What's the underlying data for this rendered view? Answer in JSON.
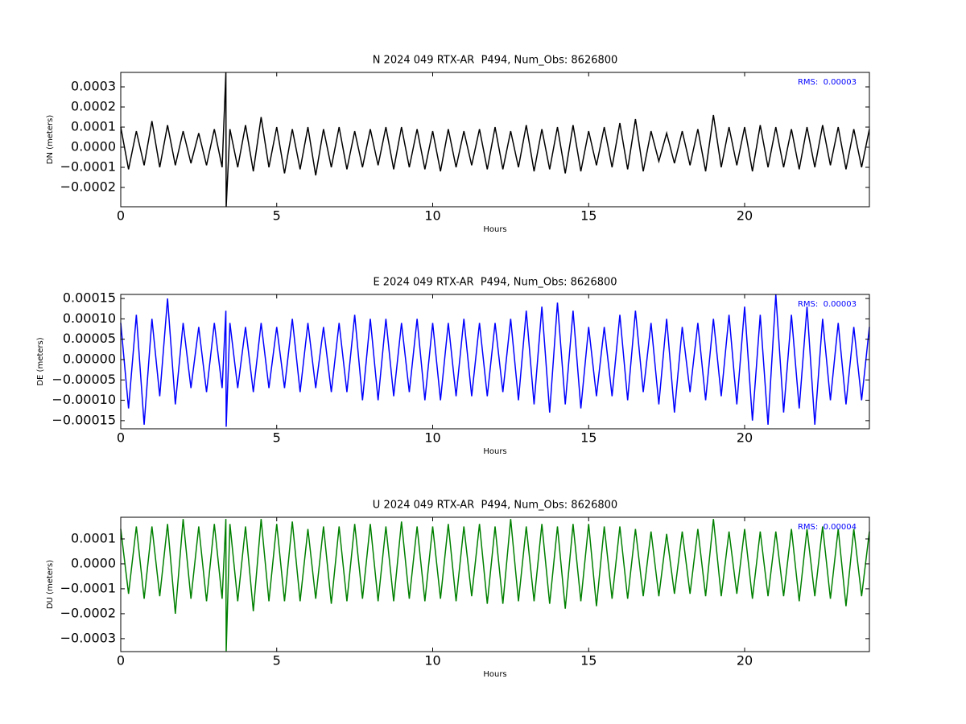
{
  "chart_data": [
    {
      "type": "line",
      "title": "N 2024 049 RTX-AR  P494, Num_Obs: 8626800",
      "xlabel": "Hours",
      "ylabel": "DN (meters)",
      "annotation": "RMS:  0.00003",
      "annotation_color": "#0000ff",
      "xlim": [
        0,
        24
      ],
      "xticks": [
        0,
        5,
        10,
        15,
        20
      ],
      "ylim": [
        -0.000296,
        0.000372
      ],
      "yticks": [
        {
          "value": -0.0002,
          "label": "−0.0002"
        },
        {
          "value": -0.0001,
          "label": "−0.0001"
        },
        {
          "value": 0,
          "label": "0.0000"
        },
        0.0001,
        0.0002,
        0.0003
      ],
      "x": [
        0,
        0.25,
        0.5,
        0.75,
        1,
        1.25,
        1.5,
        1.75,
        2,
        2.25,
        2.5,
        2.75,
        3,
        3.25,
        3.37,
        3.38,
        3.5,
        3.75,
        4,
        4.25,
        4.5,
        4.75,
        5,
        5.25,
        5.5,
        5.75,
        6,
        6.25,
        6.5,
        6.75,
        7,
        7.25,
        7.5,
        7.75,
        8,
        8.25,
        8.5,
        8.75,
        9,
        9.25,
        9.5,
        9.75,
        10,
        10.25,
        10.5,
        10.75,
        11,
        11.25,
        11.5,
        11.75,
        12,
        12.25,
        12.5,
        12.75,
        13,
        13.25,
        13.5,
        13.75,
        14,
        14.25,
        14.5,
        14.75,
        15,
        15.25,
        15.5,
        15.75,
        16,
        16.25,
        16.5,
        16.75,
        17,
        17.25,
        17.5,
        17.75,
        18,
        18.25,
        18.5,
        18.75,
        19,
        19.25,
        19.5,
        19.75,
        20,
        20.25,
        20.5,
        20.75,
        21,
        21.25,
        21.5,
        21.75,
        22,
        22.25,
        22.5,
        22.75,
        23,
        23.25,
        23.5,
        23.75,
        24
      ],
      "series": [
        {
          "color": "#000000",
          "values": [
            0.0001,
            -0.00011,
            8e-05,
            -9e-05,
            0.00013,
            -0.0001,
            0.00011,
            -9e-05,
            8e-05,
            -8e-05,
            7e-05,
            -9e-05,
            9e-05,
            -0.0001,
            0.00037,
            -0.000296,
            9e-05,
            -0.0001,
            0.00011,
            -0.00012,
            0.00015,
            -0.0001,
            0.0001,
            -0.00013,
            9e-05,
            -0.00011,
            0.0001,
            -0.00014,
            9e-05,
            -0.0001,
            0.0001,
            -0.00011,
            8e-05,
            -0.0001,
            9e-05,
            -9e-05,
            0.0001,
            -0.00011,
            0.0001,
            -0.0001,
            9e-05,
            -0.00011,
            8e-05,
            -0.00012,
            9e-05,
            -0.0001,
            8e-05,
            -9e-05,
            9e-05,
            -0.00011,
            0.0001,
            -0.00011,
            8e-05,
            -0.0001,
            0.00011,
            -0.00012,
            9e-05,
            -0.00011,
            0.0001,
            -0.00013,
            0.00011,
            -0.00012,
            8e-05,
            -9e-05,
            0.0001,
            -0.0001,
            0.00012,
            -0.00011,
            0.00014,
            -0.00012,
            8e-05,
            -7e-05,
            7e-05,
            -8e-05,
            8e-05,
            -9e-05,
            9e-05,
            -0.00012,
            0.00016,
            -0.0001,
            0.0001,
            -9e-05,
            0.0001,
            -0.00012,
            0.00011,
            -0.0001,
            0.0001,
            -0.0001,
            9e-05,
            -0.00011,
            0.0001,
            -0.0001,
            0.00011,
            -9e-05,
            0.0001,
            -0.00011,
            9e-05,
            -0.0001,
            9e-05
          ]
        }
      ]
    },
    {
      "type": "line",
      "title": "E 2024 049 RTX-AR  P494, Num_Obs: 8626800",
      "xlabel": "Hours",
      "ylabel": "DE (meters)",
      "annotation": "RMS:  0.00003",
      "annotation_color": "#0000ff",
      "xlim": [
        0,
        24
      ],
      "xticks": [
        0,
        5,
        10,
        15,
        20
      ],
      "ylim": [
        -0.00017,
        0.00016
      ],
      "yticks": [
        {
          "value": -0.00015,
          "label": "−0.00015"
        },
        {
          "value": -0.0001,
          "label": "−0.00010"
        },
        {
          "value": -5e-05,
          "label": "−0.00005"
        },
        {
          "value": 0,
          "label": "0.00000"
        },
        5e-05,
        {
          "value": 0.0001,
          "label": "0.00010"
        },
        0.00015
      ],
      "x": [
        0,
        0.25,
        0.5,
        0.75,
        1,
        1.25,
        1.5,
        1.75,
        2,
        2.25,
        2.5,
        2.75,
        3,
        3.25,
        3.37,
        3.38,
        3.5,
        3.75,
        4,
        4.25,
        4.5,
        4.75,
        5,
        5.25,
        5.5,
        5.75,
        6,
        6.25,
        6.5,
        6.75,
        7,
        7.25,
        7.5,
        7.75,
        8,
        8.25,
        8.5,
        8.75,
        9,
        9.25,
        9.5,
        9.75,
        10,
        10.25,
        10.5,
        10.75,
        11,
        11.25,
        11.5,
        11.75,
        12,
        12.25,
        12.5,
        12.75,
        13,
        13.25,
        13.5,
        13.75,
        14,
        14.25,
        14.5,
        14.75,
        15,
        15.25,
        15.5,
        15.75,
        16,
        16.25,
        16.5,
        16.75,
        17,
        17.25,
        17.5,
        17.75,
        18,
        18.25,
        18.5,
        18.75,
        19,
        19.25,
        19.5,
        19.75,
        20,
        20.25,
        20.5,
        20.75,
        21,
        21.25,
        21.5,
        21.75,
        22,
        22.25,
        22.5,
        22.75,
        23,
        23.25,
        23.5,
        23.75,
        24
      ],
      "series": [
        {
          "color": "#0000ff",
          "values": [
            9e-05,
            -0.00012,
            0.00011,
            -0.00016,
            0.0001,
            -9e-05,
            0.00015,
            -0.00011,
            9e-05,
            -7e-05,
            8e-05,
            -8e-05,
            9e-05,
            -7e-05,
            0.00012,
            -0.000165,
            9e-05,
            -7e-05,
            8e-05,
            -8e-05,
            9e-05,
            -7e-05,
            8e-05,
            -7e-05,
            0.0001,
            -8e-05,
            9e-05,
            -7e-05,
            8e-05,
            -8e-05,
            9e-05,
            -8e-05,
            0.00011,
            -0.0001,
            0.0001,
            -0.0001,
            0.0001,
            -9e-05,
            9e-05,
            -8e-05,
            0.0001,
            -0.0001,
            9e-05,
            -0.0001,
            9e-05,
            -9e-05,
            0.0001,
            -9e-05,
            9e-05,
            -9e-05,
            9e-05,
            -8e-05,
            0.0001,
            -0.0001,
            0.00012,
            -0.00011,
            0.00013,
            -0.00013,
            0.00014,
            -0.00011,
            0.00012,
            -0.00012,
            8e-05,
            -9e-05,
            8e-05,
            -9e-05,
            0.00011,
            -0.0001,
            0.00012,
            -8e-05,
            9e-05,
            -0.00011,
            0.0001,
            -0.00013,
            8e-05,
            -8e-05,
            9e-05,
            -0.0001,
            0.0001,
            -9e-05,
            0.00011,
            -0.00011,
            0.00013,
            -0.00015,
            0.00011,
            -0.00016,
            0.00016,
            -0.00013,
            0.00011,
            -0.00012,
            0.00013,
            -0.00016,
            0.0001,
            -0.0001,
            9e-05,
            -0.00011,
            8e-05,
            -0.0001,
            8e-05
          ]
        }
      ]
    },
    {
      "type": "line",
      "title": "U 2024 049 RTX-AR  P494, Num_Obs: 8626800",
      "xlabel": "Hours",
      "ylabel": "DU (meters)",
      "annotation": "RMS:  0.00004",
      "annotation_color": "#0000ff",
      "xlim": [
        0,
        24
      ],
      "xticks": [
        0,
        5,
        10,
        15,
        20
      ],
      "ylim": [
        -0.000352,
        0.000187
      ],
      "yticks": [
        {
          "value": -0.0003,
          "label": "−0.0003"
        },
        {
          "value": -0.0002,
          "label": "−0.0002"
        },
        {
          "value": -0.0001,
          "label": "−0.0001"
        },
        {
          "value": 0,
          "label": "0.0000"
        },
        0.0001
      ],
      "x": [
        0,
        0.25,
        0.5,
        0.75,
        1,
        1.25,
        1.5,
        1.75,
        2,
        2.25,
        2.5,
        2.75,
        3,
        3.25,
        3.37,
        3.38,
        3.5,
        3.75,
        4,
        4.25,
        4.5,
        4.75,
        5,
        5.25,
        5.5,
        5.75,
        6,
        6.25,
        6.5,
        6.75,
        7,
        7.25,
        7.5,
        7.75,
        8,
        8.25,
        8.5,
        8.75,
        9,
        9.25,
        9.5,
        9.75,
        10,
        10.25,
        10.5,
        10.75,
        11,
        11.25,
        11.5,
        11.75,
        12,
        12.25,
        12.5,
        12.75,
        13,
        13.25,
        13.5,
        13.75,
        14,
        14.25,
        14.5,
        14.75,
        15,
        15.25,
        15.5,
        15.75,
        16,
        16.25,
        16.5,
        16.75,
        17,
        17.25,
        17.5,
        17.75,
        18,
        18.25,
        18.5,
        18.75,
        19,
        19.25,
        19.5,
        19.75,
        20,
        20.25,
        20.5,
        20.75,
        21,
        21.25,
        21.5,
        21.75,
        22,
        22.25,
        22.5,
        22.75,
        23,
        23.25,
        23.5,
        23.75,
        24
      ],
      "series": [
        {
          "color": "#008000",
          "values": [
            0.00014,
            -0.00012,
            0.00015,
            -0.00014,
            0.00015,
            -0.00013,
            0.00016,
            -0.0002,
            0.00018,
            -0.00014,
            0.00015,
            -0.00015,
            0.00016,
            -0.00014,
            0.00018,
            -0.00035,
            0.00016,
            -0.00015,
            0.00015,
            -0.00019,
            0.00018,
            -0.00015,
            0.00016,
            -0.00015,
            0.00017,
            -0.00015,
            0.00014,
            -0.00014,
            0.00015,
            -0.00016,
            0.00015,
            -0.00015,
            0.00016,
            -0.00014,
            0.00016,
            -0.00015,
            0.00015,
            -0.00015,
            0.00017,
            -0.00014,
            0.00015,
            -0.00015,
            0.00015,
            -0.00014,
            0.00016,
            -0.00015,
            0.00015,
            -0.00013,
            0.00016,
            -0.00016,
            0.00015,
            -0.00016,
            0.00018,
            -0.00015,
            0.00015,
            -0.00015,
            0.00016,
            -0.00016,
            0.00015,
            -0.00018,
            0.00016,
            -0.00015,
            0.00016,
            -0.00017,
            0.00015,
            -0.00014,
            0.00015,
            -0.00014,
            0.00014,
            -0.00013,
            0.00013,
            -0.00013,
            0.00012,
            -0.00012,
            0.00013,
            -0.00012,
            0.00014,
            -0.00013,
            0.00018,
            -0.00013,
            0.00013,
            -0.00012,
            0.00014,
            -0.00014,
            0.00013,
            -0.00013,
            0.00013,
            -0.00013,
            0.00014,
            -0.00015,
            0.00014,
            -0.00013,
            0.00015,
            -0.00014,
            0.00014,
            -0.00017,
            0.00014,
            -0.00013,
            0.00013
          ]
        }
      ]
    }
  ]
}
